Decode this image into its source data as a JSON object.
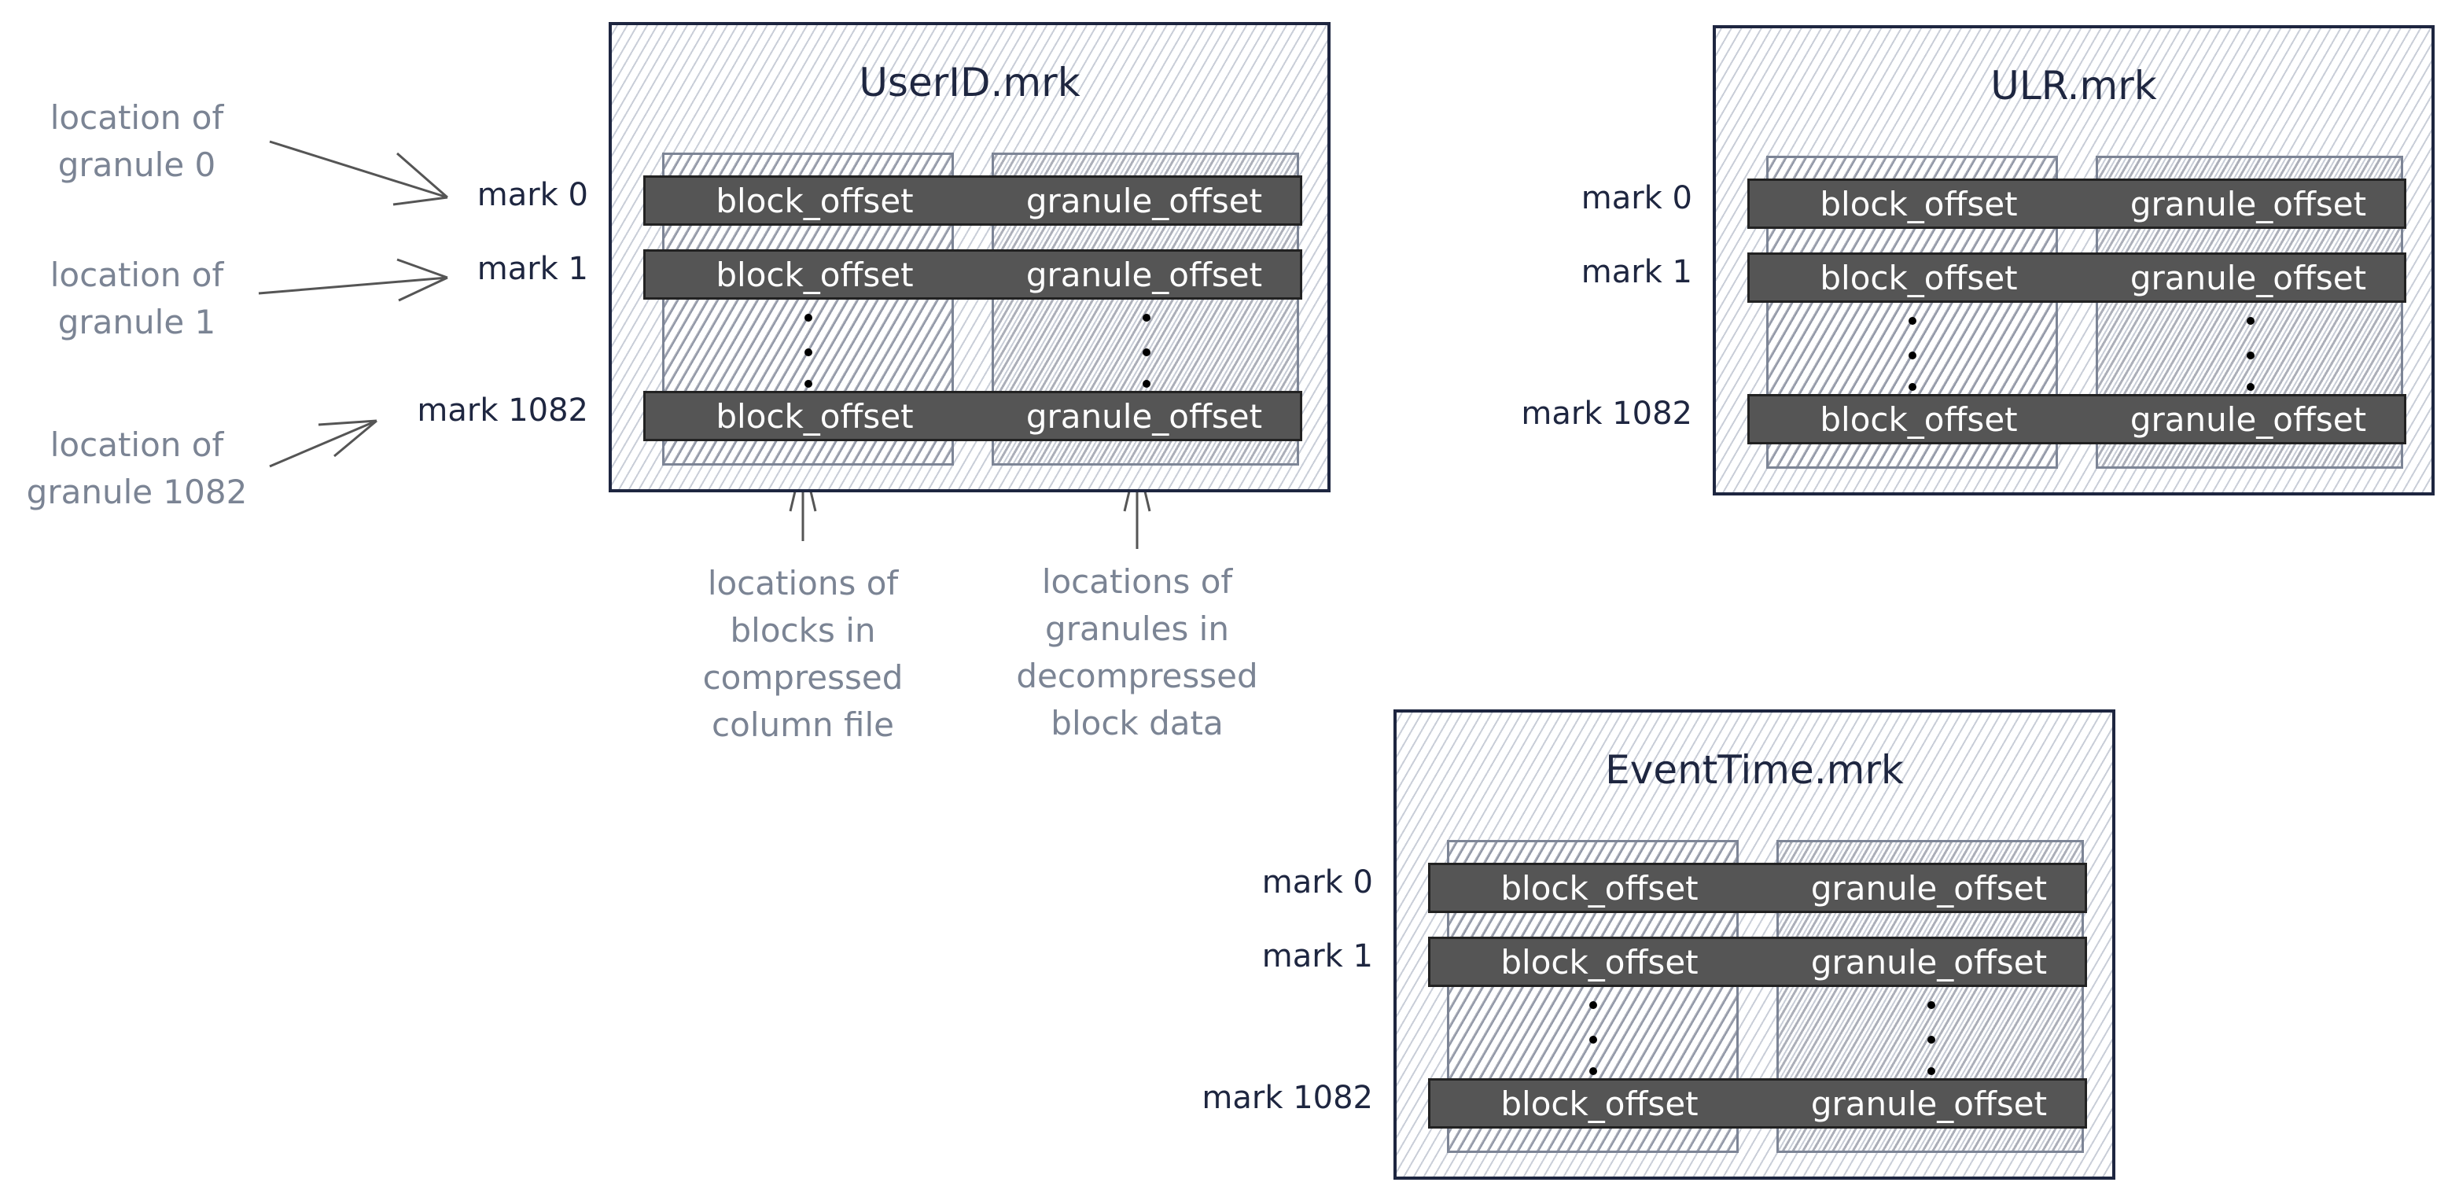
{
  "files": [
    {
      "title": "UserID.mrk",
      "rows": [
        {
          "mark": "mark 0",
          "block": "block_offset",
          "granule": "granule_offset"
        },
        {
          "mark": "mark 1",
          "block": "block_offset",
          "granule": "granule_offset"
        },
        {
          "mark": "mark 1082",
          "block": "block_offset",
          "granule": "granule_offset"
        }
      ]
    },
    {
      "title": "ULR.mrk",
      "rows": [
        {
          "mark": "mark 0",
          "block": "block_offset",
          "granule": "granule_offset"
        },
        {
          "mark": "mark 1",
          "block": "block_offset",
          "granule": "granule_offset"
        },
        {
          "mark": "mark 1082",
          "block": "block_offset",
          "granule": "granule_offset"
        }
      ]
    },
    {
      "title": "EventTime.mrk",
      "rows": [
        {
          "mark": "mark 0",
          "block": "block_offset",
          "granule": "granule_offset"
        },
        {
          "mark": "mark 1",
          "block": "block_offset",
          "granule": "granule_offset"
        },
        {
          "mark": "mark 1082",
          "block": "block_offset",
          "granule": "granule_offset"
        }
      ]
    }
  ],
  "annotations": {
    "granule_0": [
      "location of",
      "granule 0"
    ],
    "granule_1": [
      "location of",
      "granule 1"
    ],
    "granule_1082": [
      "location of",
      "granule 1082"
    ],
    "blocks": [
      "locations of",
      "blocks in",
      "compressed",
      "column file"
    ],
    "granules": [
      "locations of",
      "granules in",
      "decompressed",
      "block data"
    ]
  },
  "colors": {
    "frame": "#1e2640",
    "row_fill": "#555555",
    "annotation": "#7b8494"
  }
}
